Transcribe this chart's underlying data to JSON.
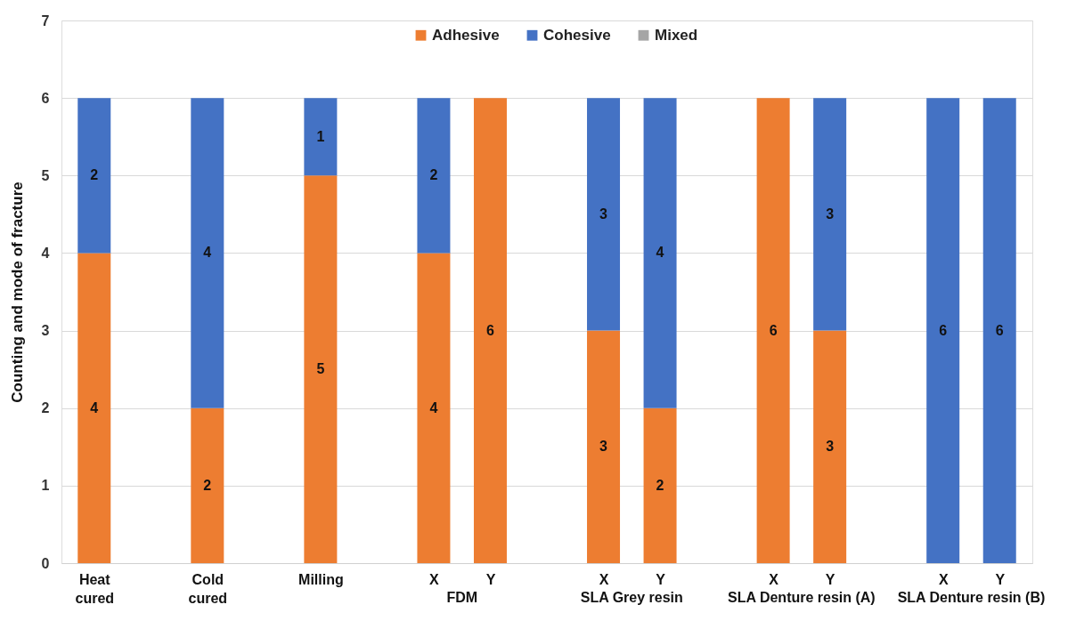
{
  "chart_data": {
    "type": "bar",
    "stacked": true,
    "ylabel": "Counting and mode of fracture",
    "categories": [
      "Heat cured",
      null,
      "Cold cured",
      null,
      "Milling",
      null,
      "X",
      "Y",
      null,
      "X",
      "Y",
      null,
      "X",
      "Y",
      null,
      "X",
      "Y"
    ],
    "series": [
      {
        "name": "Adhesive",
        "color": "#ed7d31",
        "values": [
          4,
          null,
          2,
          null,
          5,
          null,
          4,
          6,
          null,
          3,
          2,
          null,
          6,
          3,
          null,
          0,
          0
        ],
        "value_labels": [
          "4",
          null,
          "2",
          null,
          "5",
          null,
          "4",
          "6",
          null,
          "3",
          "2",
          null,
          "6",
          "3",
          null,
          null,
          null
        ]
      },
      {
        "name": "Cohesive",
        "color": "#4472c4",
        "values": [
          2,
          null,
          4,
          null,
          1,
          null,
          2,
          0,
          null,
          3,
          4,
          null,
          0,
          3,
          null,
          6,
          6
        ],
        "value_labels": [
          "2",
          null,
          "4",
          null,
          "1",
          null,
          "2",
          null,
          null,
          "3",
          "4",
          null,
          null,
          "3",
          null,
          "6",
          "6"
        ]
      },
      {
        "name": "Mixed",
        "color": "#a5a5a5",
        "values": [
          0,
          null,
          0,
          null,
          0,
          null,
          0,
          0,
          null,
          0,
          0,
          null,
          0,
          0,
          null,
          0,
          0
        ]
      }
    ],
    "annotations": [
      "FDM",
      "SLA Grey resin",
      "SLA Denture resin (A)",
      "SLA Denture resin (B)"
    ],
    "ylim": [
      0,
      7
    ],
    "yticks": [
      0,
      1,
      2,
      3,
      4,
      5,
      6,
      7
    ],
    "grid": "y",
    "legend": "top"
  }
}
